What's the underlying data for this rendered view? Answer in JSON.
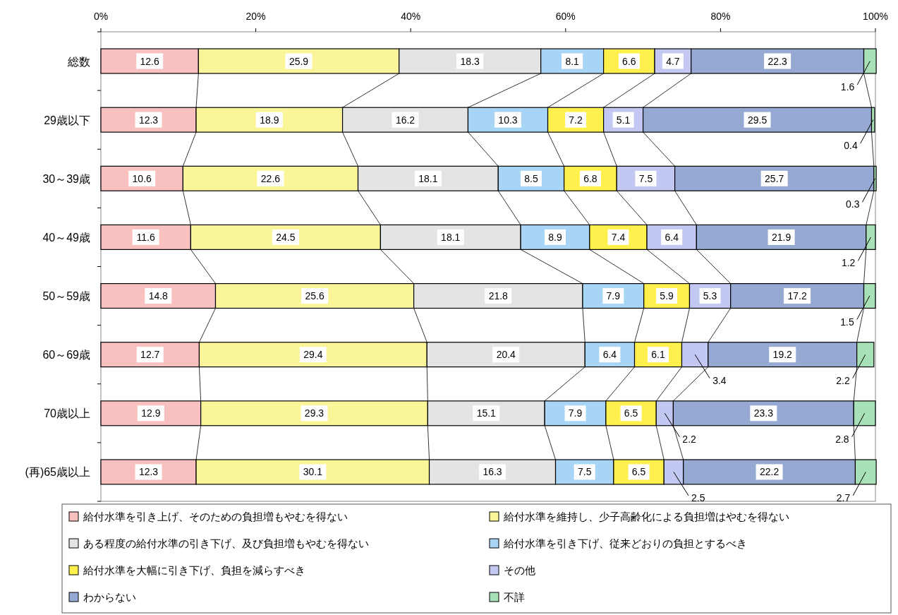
{
  "chart_data": {
    "type": "bar",
    "orientation": "horizontal",
    "stacked": true,
    "data_labels": true,
    "legend": "bottom",
    "grid": false,
    "categories": [
      "総数",
      "29歳以下",
      "30～39歳",
      "40～49歳",
      "50～59歳",
      "60～69歳",
      "70歳以上",
      "(再)65歳以上"
    ],
    "xlim": [
      0,
      100
    ],
    "xticks": [
      {
        "value": 0,
        "label": "0%"
      },
      {
        "value": 20,
        "label": "20%"
      },
      {
        "value": 40,
        "label": "40%"
      },
      {
        "value": 60,
        "label": "60%"
      },
      {
        "value": 80,
        "label": "80%"
      },
      {
        "value": 100,
        "label": "100%"
      }
    ],
    "series": [
      {
        "name": "給付水準を引き上げ、そのための負担増もやむを得ない",
        "color": "#f9c0c0",
        "values": [
          12.6,
          12.3,
          10.6,
          11.6,
          14.8,
          12.7,
          12.9,
          12.3
        ]
      },
      {
        "name": "給付水準を維持し、少子高齢化による負担増はやむを得ない",
        "color": "#fbf59a",
        "values": [
          25.9,
          18.9,
          22.6,
          24.5,
          25.6,
          29.4,
          29.3,
          30.1
        ]
      },
      {
        "name": "ある程度の給付水準の引き下げ、及び負担増もやむを得ない",
        "color": "#e4e4e4",
        "values": [
          18.3,
          16.2,
          18.1,
          18.1,
          21.8,
          20.4,
          15.1,
          16.3
        ]
      },
      {
        "name": "給付水準を引き下げ、従来どおりの負担とするべき",
        "color": "#a8d4f5",
        "values": [
          8.1,
          10.3,
          8.5,
          8.9,
          7.9,
          6.4,
          7.9,
          7.5
        ]
      },
      {
        "name": "給付水準を大幅に引き下げ、負担を減らすべき",
        "color": "#fff04d",
        "values": [
          6.6,
          7.2,
          6.8,
          7.4,
          5.9,
          6.1,
          6.5,
          6.5
        ]
      },
      {
        "name": "その他",
        "color": "#c3c8f2",
        "values": [
          4.7,
          5.1,
          7.5,
          6.4,
          5.3,
          3.4,
          2.2,
          2.5
        ]
      },
      {
        "name": "わからない",
        "color": "#95a9d3",
        "values": [
          22.3,
          29.5,
          25.7,
          21.9,
          17.2,
          19.2,
          23.3,
          22.2
        ]
      },
      {
        "name": "不詳",
        "color": "#a8e0b8",
        "values": [
          1.6,
          0.4,
          0.3,
          1.2,
          1.5,
          2.2,
          2.8,
          2.7
        ]
      }
    ]
  }
}
